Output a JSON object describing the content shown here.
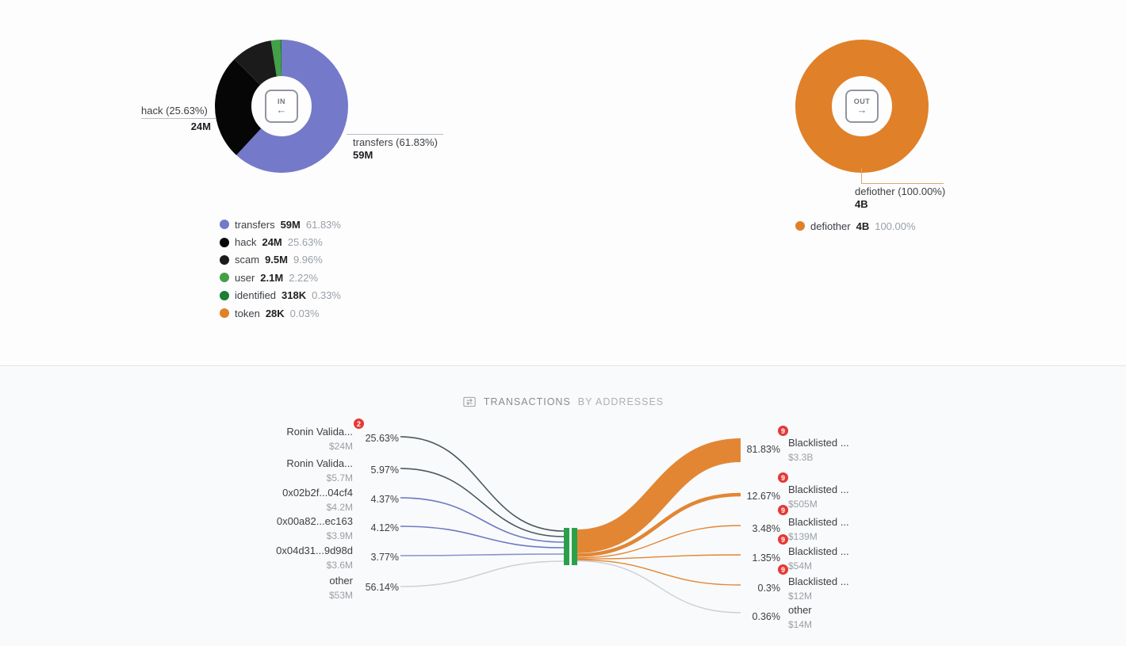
{
  "donut_in": {
    "center_icon_label": "IN",
    "center_icon_arrow": "←",
    "segments": [
      {
        "label": "transfers",
        "value": "59M",
        "pct": 61.83,
        "pct_label": "61.83%",
        "color": "#747ac9"
      },
      {
        "label": "hack",
        "value": "24M",
        "pct": 25.63,
        "pct_label": "25.63%",
        "color": "#060606"
      },
      {
        "label": "scam",
        "value": "9.5M",
        "pct": 9.96,
        "pct_label": "9.96%",
        "color": "#1b1b1b"
      },
      {
        "label": "user",
        "value": "2.1M",
        "pct": 2.22,
        "pct_label": "2.22%",
        "color": "#43a047"
      },
      {
        "label": "identified",
        "value": "318K",
        "pct": 0.33,
        "pct_label": "0.33%",
        "color": "#1e7e34"
      },
      {
        "label": "token",
        "value": "28K",
        "pct": 0.03,
        "pct_label": "0.03%",
        "color": "#e08029"
      }
    ],
    "callout_left": {
      "text": "hack (25.63%)",
      "value": "24M"
    },
    "callout_right": {
      "text": "transfers (61.83%)",
      "value": "59M"
    }
  },
  "donut_out": {
    "center_icon_label": "OUT",
    "center_icon_arrow": "→",
    "segments": [
      {
        "label": "defiother",
        "value": "4B",
        "pct": 100.0,
        "pct_label": "100.00%",
        "color": "#e08029"
      }
    ],
    "callout": {
      "text": "defiother (100.00%)",
      "value": "4B"
    }
  },
  "sankey": {
    "title_primary": "TRANSACTIONS",
    "title_secondary": "BY ADDRESSES",
    "left_nodes": [
      {
        "name": "Ronin Valida...",
        "usd": "$24M",
        "pct": "25.63%",
        "badge": "2",
        "color": "#37474f"
      },
      {
        "name": "Ronin Valida...",
        "usd": "$5.7M",
        "pct": "5.97%",
        "color": "#37474f"
      },
      {
        "name": "0x02b2f...04cf4",
        "usd": "$4.2M",
        "pct": "4.37%",
        "color": "#5c6bc0"
      },
      {
        "name": "0x00a82...ec163",
        "usd": "$3.9M",
        "pct": "4.12%",
        "color": "#5c6bc0"
      },
      {
        "name": "0x04d31...9d98d",
        "usd": "$3.6M",
        "pct": "3.77%",
        "color": "#7986cb"
      },
      {
        "name": "other",
        "usd": "$53M",
        "pct": "56.14%",
        "color": "#c9ccd4"
      }
    ],
    "right_nodes": [
      {
        "pct": "81.83%",
        "badge": "9",
        "name": "Blacklisted ...",
        "usd": "$3.3B",
        "color": "#e08029"
      },
      {
        "pct": "12.67%",
        "badge": "9",
        "name": "Blacklisted ...",
        "usd": "$505M",
        "color": "#e08029"
      },
      {
        "pct": "3.48%",
        "badge": "9",
        "name": "Blacklisted ...",
        "usd": "$139M",
        "color": "#e08029"
      },
      {
        "pct": "1.35%",
        "badge": "9",
        "name": "Blacklisted ...",
        "usd": "$54M",
        "color": "#e08029"
      },
      {
        "pct": "0.3%",
        "badge": "9",
        "name": "Blacklisted ...",
        "usd": "$12M",
        "color": "#e08029"
      },
      {
        "pct": "0.36%",
        "name": "other",
        "usd": "$14M",
        "color": "#c9ccd4"
      }
    ],
    "node_color": "#2aa04a"
  },
  "chart_data": [
    {
      "type": "pie",
      "title": "incoming transactions (IN)",
      "labels": [
        "transfers",
        "hack",
        "scam",
        "user",
        "identified",
        "token"
      ],
      "values": [
        61.83,
        25.63,
        9.96,
        2.22,
        0.33,
        0.03
      ],
      "amounts": [
        "59M",
        "24M",
        "9.5M",
        "2.1M",
        "318K",
        "28K"
      ],
      "colors": [
        "#747ac9",
        "#060606",
        "#1b1b1b",
        "#43a047",
        "#1e7e34",
        "#e08029"
      ],
      "center_label": "IN",
      "legend_position": "bottom-left"
    },
    {
      "type": "pie",
      "title": "outgoing transactions (OUT)",
      "labels": [
        "defiother"
      ],
      "values": [
        100.0
      ],
      "amounts": [
        "4B"
      ],
      "colors": [
        "#e08029"
      ],
      "center_label": "OUT",
      "legend_position": "bottom-left"
    },
    {
      "type": "sankey",
      "title": "TRANSACTIONS BY ADDRESSES",
      "sources": [
        {
          "name": "Ronin Valida...",
          "pct": 25.63,
          "usd": "$24M",
          "alerts": 2
        },
        {
          "name": "Ronin Valida...",
          "pct": 5.97,
          "usd": "$5.7M"
        },
        {
          "name": "0x02b2f...04cf4",
          "pct": 4.37,
          "usd": "$4.2M"
        },
        {
          "name": "0x00a82...ec163",
          "pct": 4.12,
          "usd": "$3.9M"
        },
        {
          "name": "0x04d31...9d98d",
          "pct": 3.77,
          "usd": "$3.6M"
        },
        {
          "name": "other",
          "pct": 56.14,
          "usd": "$53M"
        }
      ],
      "targets": [
        {
          "name": "Blacklisted ...",
          "pct": 81.83,
          "usd": "$3.3B",
          "alerts": 9
        },
        {
          "name": "Blacklisted ...",
          "pct": 12.67,
          "usd": "$505M",
          "alerts": 9
        },
        {
          "name": "Blacklisted ...",
          "pct": 3.48,
          "usd": "$139M",
          "alerts": 9
        },
        {
          "name": "Blacklisted ...",
          "pct": 1.35,
          "usd": "$54M",
          "alerts": 9
        },
        {
          "name": "Blacklisted ...",
          "pct": 0.3,
          "usd": "$12M",
          "alerts": 9
        },
        {
          "name": "other",
          "pct": 0.36,
          "usd": "$14M"
        }
      ]
    }
  ]
}
